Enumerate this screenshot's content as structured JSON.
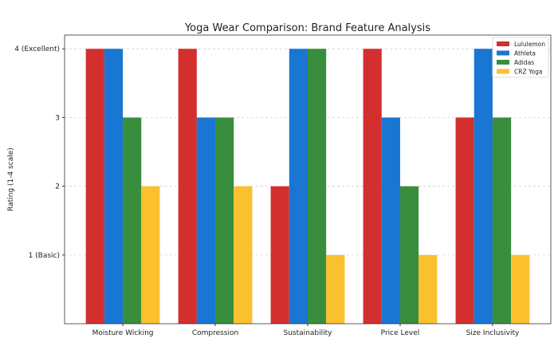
{
  "chart_data": {
    "type": "bar",
    "title": "Yoga Wear Comparison: Brand Feature Analysis",
    "xlabel": "",
    "ylabel": "Rating (1-4 scale)",
    "categories": [
      "Moisture Wicking",
      "Compression",
      "Sustainability",
      "Price Level",
      "Size Inclusivity"
    ],
    "series": [
      {
        "name": "Lululemon",
        "color": "#d32f2f",
        "values": [
          4,
          4,
          2,
          4,
          3
        ]
      },
      {
        "name": "Athleta",
        "color": "#1976d2",
        "values": [
          4,
          3,
          4,
          3,
          4
        ]
      },
      {
        "name": "Adidas",
        "color": "#388e3c",
        "values": [
          3,
          3,
          4,
          2,
          3
        ]
      },
      {
        "name": "CRZ Yoga",
        "color": "#fbc02d",
        "values": [
          2,
          2,
          1,
          1,
          1
        ]
      }
    ],
    "yticks": [
      1,
      2,
      3,
      4
    ],
    "ytick_labels": [
      "1 (Basic)",
      "2",
      "3",
      "4 (Excellent)"
    ],
    "ylim": [
      0,
      4.2
    ],
    "grid": "y-dashed",
    "legend_position": "top-right"
  }
}
